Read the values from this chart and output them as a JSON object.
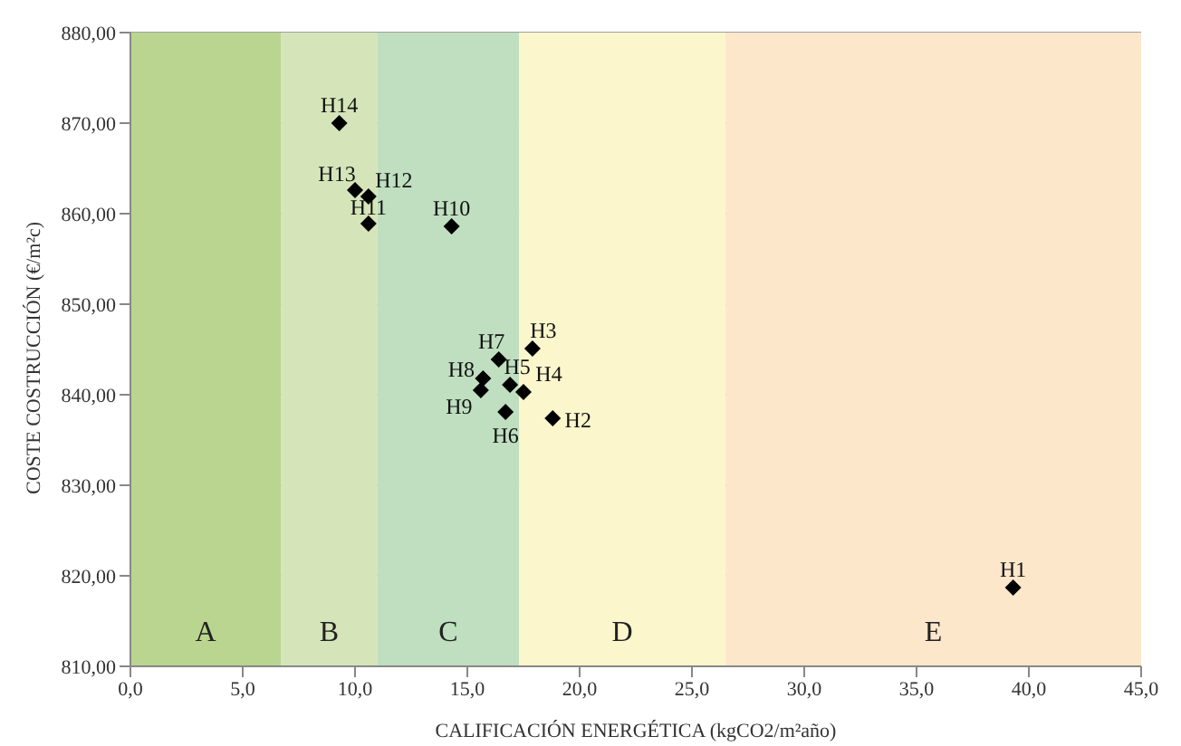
{
  "chart_data": {
    "type": "scatter",
    "xlabel": "CALIFICACIÓN ENERGÉTICA (kgCO2/m²año)",
    "ylabel": "COSTE COSTRUCCIÓN (€/m²c)",
    "x": [
      39.3,
      18.8,
      17.9,
      17.5,
      16.9,
      16.7,
      16.4,
      15.7,
      15.6,
      14.3,
      10.6,
      10.6,
      10.0,
      9.3
    ],
    "series": [
      {
        "color": "#000000",
        "values": [
          818.7,
          837.4,
          845.1,
          840.3,
          841.1,
          838.1,
          843.9,
          841.8,
          840.5,
          858.6,
          858.9,
          861.9,
          862.6,
          870.0
        ]
      }
    ],
    "marker": "diamond",
    "xlim": [
      0,
      45
    ],
    "xticks": [
      {
        "value": 0,
        "label": "0,0"
      },
      {
        "value": 5,
        "label": "5,0"
      },
      {
        "value": 10,
        "label": "10,0"
      },
      {
        "value": 15,
        "label": "15,0"
      },
      {
        "value": 20,
        "label": "20,0"
      },
      {
        "value": 25,
        "label": "25,0"
      },
      {
        "value": 30,
        "label": "30,0"
      },
      {
        "value": 35,
        "label": "35,0"
      },
      {
        "value": 40,
        "label": "40,0"
      },
      {
        "value": 45,
        "label": "45,0"
      }
    ],
    "ylim": [
      810,
      880
    ],
    "yticks": [
      {
        "value": 810,
        "label": "810,00"
      },
      {
        "value": 820,
        "label": "820,00"
      },
      {
        "value": 830,
        "label": "830,00"
      },
      {
        "value": 840,
        "label": "840,00"
      },
      {
        "value": 850,
        "label": "850,00"
      },
      {
        "value": 860,
        "label": "860,00"
      },
      {
        "value": 870,
        "label": "870,00"
      },
      {
        "value": 880,
        "label": "880,00"
      }
    ],
    "grid": "y",
    "bands": [
      {
        "axis": "x",
        "from": 0,
        "to": 6.7,
        "label": "A",
        "color": "#b9d58f"
      },
      {
        "axis": "x",
        "from": 6.7,
        "to": 11.0,
        "label": "B",
        "color": "#d5e5b9"
      },
      {
        "axis": "x",
        "from": 11.0,
        "to": 17.3,
        "label": "C",
        "color": "#bfdfc0"
      },
      {
        "axis": "x",
        "from": 17.3,
        "to": 26.5,
        "label": "D",
        "color": "#fcf6cd"
      },
      {
        "axis": "x",
        "from": 26.5,
        "to": 45,
        "label": "E",
        "color": "#fde7cb"
      }
    ],
    "annotations": [
      {
        "text": "H1",
        "x": 39.3,
        "y": 818.7
      },
      {
        "text": "H2",
        "x": 18.8,
        "y": 837.4
      },
      {
        "text": "H3",
        "x": 17.9,
        "y": 845.1
      },
      {
        "text": "H4",
        "x": 17.5,
        "y": 840.3
      },
      {
        "text": "H5",
        "x": 16.9,
        "y": 841.1
      },
      {
        "text": "H6",
        "x": 16.7,
        "y": 838.1
      },
      {
        "text": "H7",
        "x": 16.4,
        "y": 843.9
      },
      {
        "text": "H8",
        "x": 15.7,
        "y": 841.8
      },
      {
        "text": "H9",
        "x": 15.6,
        "y": 840.5
      },
      {
        "text": "H10",
        "x": 14.3,
        "y": 858.6
      },
      {
        "text": "H11",
        "x": 10.6,
        "y": 858.9
      },
      {
        "text": "H12",
        "x": 10.6,
        "y": 861.9
      },
      {
        "text": "H13",
        "x": 10.0,
        "y": 862.6
      },
      {
        "text": "H14",
        "x": 9.3,
        "y": 870.0
      }
    ]
  }
}
